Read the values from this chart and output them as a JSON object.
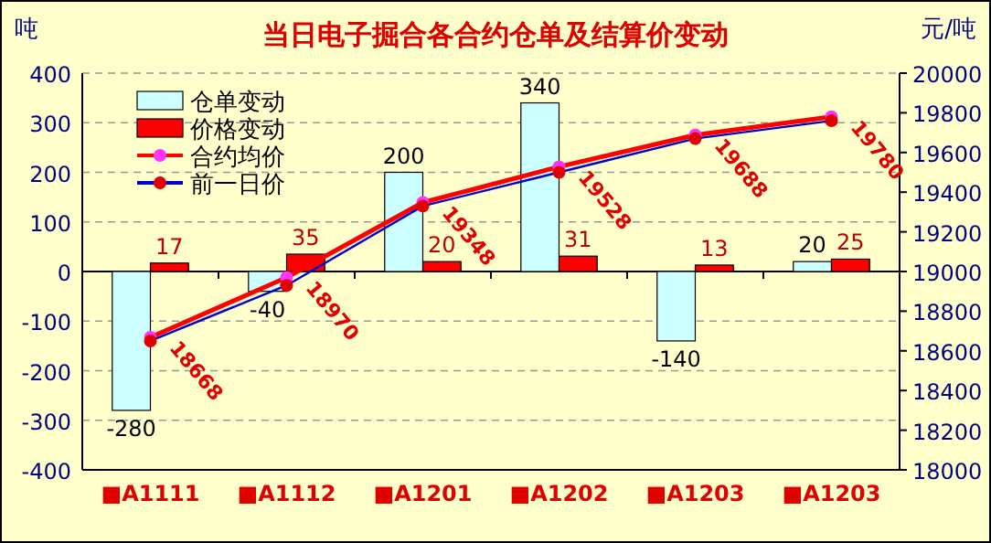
{
  "chart_data": {
    "type": "bar",
    "title": "当日电子掘合各合约仓单及结算价变动",
    "ylabel": "吨",
    "y2label": "元/吨",
    "categories": [
      "■A1111",
      "■A1112",
      "■A1201",
      "■A1202",
      "■A1203",
      "■A1203"
    ],
    "series": [
      {
        "name": "仓单变动",
        "type": "bar",
        "color": "#ccffff",
        "values": [
          -280,
          -40,
          200,
          340,
          -140,
          20
        ],
        "value_labels": [
          "-280",
          "-40",
          "200",
          "340",
          "-140",
          "20"
        ]
      },
      {
        "name": "价格变动",
        "type": "bar",
        "color": "#ff0000",
        "values": [
          17,
          35,
          20,
          31,
          13,
          25
        ],
        "value_labels": [
          "17",
          "35",
          "20",
          "31",
          "13",
          "25"
        ]
      },
      {
        "name": "合约均价",
        "type": "line",
        "axis": "y2",
        "color": "#ff0000",
        "values": [
          18668,
          18970,
          19348,
          19528,
          19688,
          19780
        ],
        "value_labels": [
          "18668",
          "18970",
          "19348",
          "19528",
          "19688",
          "19780"
        ]
      },
      {
        "name": "前一日价",
        "type": "line",
        "axis": "y2",
        "color": "#0000cc",
        "values": [
          18650,
          18930,
          19330,
          19500,
          19670,
          19760
        ]
      }
    ],
    "ylim": [
      -400,
      400
    ],
    "yticks": [
      -400,
      -300,
      -200,
      -100,
      0,
      100,
      200,
      300,
      400
    ],
    "y2lim": [
      18000,
      20000
    ],
    "y2ticks": [
      18000,
      18200,
      18400,
      18600,
      18800,
      19000,
      19200,
      19400,
      19600,
      19800,
      20000
    ],
    "grid": "y",
    "legend": "top left",
    "marker": "circle"
  }
}
